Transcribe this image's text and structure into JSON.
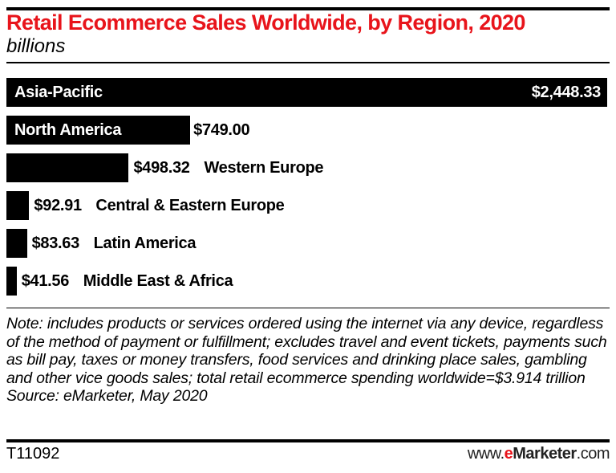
{
  "chart_data": {
    "type": "bar",
    "orientation": "horizontal",
    "title": "Retail Ecommerce Sales Worldwide, by Region, 2020",
    "subtitle": "billions",
    "categories": [
      "Asia-Pacific",
      "North America",
      "Western Europe",
      "Central & Eastern Europe",
      "Latin America",
      "Middle East & Africa"
    ],
    "values": [
      2448.33,
      749.0,
      498.32,
      92.91,
      83.63,
      41.56
    ],
    "data_labels": [
      "$2,448.33",
      "$749.00",
      "$498.32",
      "$92.91",
      "$83.63",
      "$41.56"
    ],
    "bar_color": "#000000",
    "title_color": "#e8141b",
    "grid": false,
    "legend": "none"
  },
  "note": "Note: includes products or services ordered using the internet via any device, regardless of the method of payment or fulfillment; excludes travel and event tickets, payments such as bill pay, taxes or money transfers, food services and drinking place sales, gambling and other vice goods sales; total retail ecommerce spending worldwide=$3.914 trillion",
  "source": "Source: eMarketer, May 2020",
  "footer": {
    "code": "T11092",
    "logo": {
      "prefix": "www.",
      "e": "e",
      "brand": "Marketer",
      "suffix": ".com"
    }
  }
}
